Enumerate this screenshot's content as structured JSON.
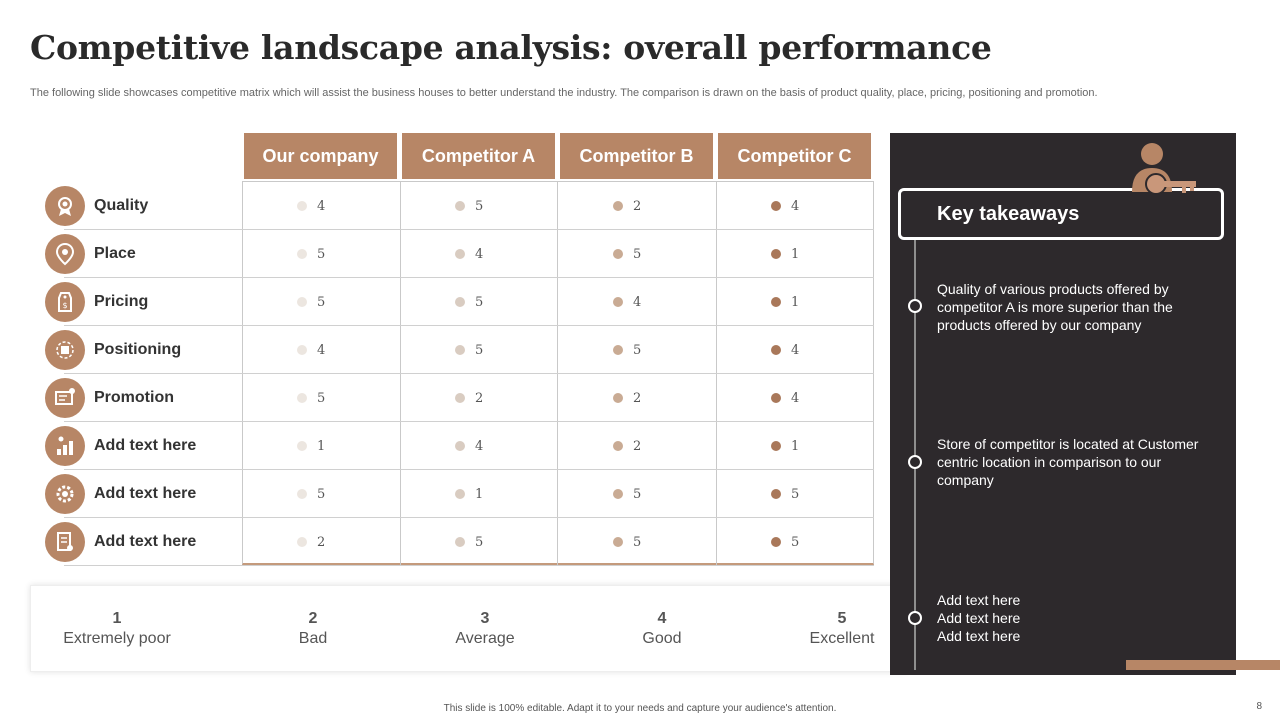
{
  "title": "Competitive landscape analysis: overall performance",
  "subtitle": "The following slide showcases competitive matrix which will assist the business houses to better understand the industry. The comparison is drawn on the basis of product quality, place, pricing, positioning and promotion.",
  "columns": [
    "Our company",
    "Competitor A",
    "Competitor B",
    "Competitor C"
  ],
  "dot_colors": [
    "#ece6e0",
    "#d9ccc1",
    "#c9ab94",
    "#a9785a"
  ],
  "rows": [
    {
      "label": "Quality",
      "icon": "award-icon",
      "scores": [
        "4",
        "5",
        "2",
        "4"
      ]
    },
    {
      "label": "Place",
      "icon": "location-pin-icon",
      "scores": [
        "5",
        "4",
        "5",
        "1"
      ]
    },
    {
      "label": "Pricing",
      "icon": "price-tag-icon",
      "scores": [
        "5",
        "5",
        "4",
        "1"
      ]
    },
    {
      "label": "Positioning",
      "icon": "target-icon",
      "scores": [
        "4",
        "5",
        "5",
        "4"
      ]
    },
    {
      "label": "Promotion",
      "icon": "megaphone-icon",
      "scores": [
        "5",
        "2",
        "2",
        "4"
      ]
    },
    {
      "label": "Add text here",
      "icon": "growth-icon",
      "scores": [
        "1",
        "4",
        "2",
        "1"
      ]
    },
    {
      "label": "Add text here",
      "icon": "gear-icon",
      "scores": [
        "5",
        "1",
        "5",
        "5"
      ]
    },
    {
      "label": "Add text here",
      "icon": "document-icon",
      "scores": [
        "2",
        "5",
        "5",
        "5"
      ]
    }
  ],
  "legend": [
    {
      "num": "1",
      "text": "Extremely poor"
    },
    {
      "num": "2",
      "text": "Bad"
    },
    {
      "num": "3",
      "text": "Average"
    },
    {
      "num": "4",
      "text": "Good"
    },
    {
      "num": "5",
      "text": "Excellent"
    }
  ],
  "key_takeaways": {
    "title": "Key takeaways",
    "items": [
      "Quality of various products offered by competitor A is more superior than the products offered by our company",
      "Store of competitor is located at Customer centric location in comparison to our company",
      "Add text here\nAdd text here\nAdd text here"
    ]
  },
  "footer": "This slide is 100% editable. Adapt it to your needs and capture your audience's attention.",
  "page_number": "8",
  "accent_color": "#b78666",
  "panel_color": "#2d292c"
}
